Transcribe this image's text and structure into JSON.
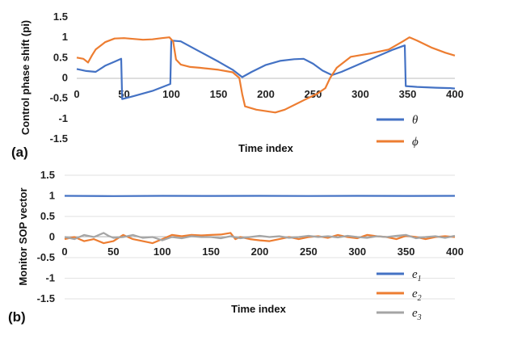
{
  "chart_data": [
    {
      "type": "line",
      "panel_label": "(a)",
      "xlabel": "Time index",
      "ylabel": "Control phase shift (pi)",
      "xlim": [
        0,
        400
      ],
      "ylim": [
        -1.5,
        1.5
      ],
      "x_ticks": [
        "0",
        "50",
        "100",
        "150",
        "200",
        "250",
        "300",
        "350",
        "400"
      ],
      "y_ticks": [
        "1.5",
        "1",
        "0.5",
        "0",
        "-0.5",
        "-1",
        "-1.5"
      ],
      "grid": false,
      "legend_position": "bottom-right",
      "series": [
        {
          "name": "θ",
          "color": "#4472C4",
          "points": [
            [
              0,
              0.22
            ],
            [
              10,
              0.17
            ],
            [
              20,
              0.15
            ],
            [
              30,
              0.3
            ],
            [
              40,
              0.4
            ],
            [
              47,
              0.47
            ],
            [
              48,
              -0.52
            ],
            [
              60,
              -0.45
            ],
            [
              80,
              -0.32
            ],
            [
              99,
              -0.15
            ],
            [
              100,
              0.92
            ],
            [
              110,
              0.9
            ],
            [
              130,
              0.65
            ],
            [
              150,
              0.4
            ],
            [
              165,
              0.2
            ],
            [
              175,
              0.02
            ],
            [
              185,
              0.15
            ],
            [
              200,
              0.32
            ],
            [
              215,
              0.42
            ],
            [
              230,
              0.46
            ],
            [
              240,
              0.47
            ],
            [
              250,
              0.35
            ],
            [
              260,
              0.18
            ],
            [
              270,
              0.07
            ],
            [
              280,
              0.15
            ],
            [
              300,
              0.35
            ],
            [
              320,
              0.55
            ],
            [
              335,
              0.7
            ],
            [
              347,
              0.8
            ],
            [
              348,
              -0.2
            ],
            [
              360,
              -0.22
            ],
            [
              380,
              -0.24
            ],
            [
              395,
              -0.25
            ],
            [
              400,
              -0.26
            ]
          ]
        },
        {
          "name": "ϕ",
          "color": "#ED7D31",
          "points": [
            [
              0,
              0.5
            ],
            [
              7,
              0.47
            ],
            [
              12,
              0.38
            ],
            [
              16,
              0.55
            ],
            [
              20,
              0.7
            ],
            [
              30,
              0.88
            ],
            [
              40,
              0.97
            ],
            [
              50,
              0.98
            ],
            [
              60,
              0.96
            ],
            [
              70,
              0.94
            ],
            [
              80,
              0.95
            ],
            [
              90,
              0.98
            ],
            [
              98,
              1.0
            ],
            [
              102,
              0.9
            ],
            [
              105,
              0.45
            ],
            [
              110,
              0.33
            ],
            [
              120,
              0.27
            ],
            [
              130,
              0.25
            ],
            [
              150,
              0.2
            ],
            [
              165,
              0.14
            ],
            [
              172,
              0.0
            ],
            [
              175,
              -0.4
            ],
            [
              178,
              -0.7
            ],
            [
              190,
              -0.78
            ],
            [
              210,
              -0.85
            ],
            [
              220,
              -0.78
            ],
            [
              240,
              -0.55
            ],
            [
              255,
              -0.38
            ],
            [
              263,
              -0.25
            ],
            [
              268,
              0.0
            ],
            [
              275,
              0.25
            ],
            [
              290,
              0.52
            ],
            [
              310,
              0.6
            ],
            [
              330,
              0.7
            ],
            [
              345,
              0.9
            ],
            [
              352,
              1.0
            ],
            [
              360,
              0.92
            ],
            [
              375,
              0.75
            ],
            [
              390,
              0.62
            ],
            [
              400,
              0.55
            ]
          ]
        }
      ]
    },
    {
      "type": "line",
      "panel_label": "(b)",
      "xlabel": "Time index",
      "ylabel": "Monitor SOP vector",
      "xlim": [
        0,
        400
      ],
      "ylim": [
        -1.5,
        1.5
      ],
      "x_ticks": [
        "0",
        "50",
        "100",
        "150",
        "200",
        "250",
        "300",
        "350",
        "400"
      ],
      "y_ticks": [
        "1.5",
        "1",
        "0.5",
        "0",
        "-0.5",
        "-1",
        "-1.5"
      ],
      "grid": true,
      "legend_position": "bottom-right",
      "series": [
        {
          "name": "e",
          "subscript": "1",
          "color": "#4472C4",
          "points": [
            [
              0,
              1.0
            ],
            [
              50,
              0.995
            ],
            [
              100,
              1.0
            ],
            [
              150,
              0.998
            ],
            [
              200,
              1.0
            ],
            [
              250,
              0.997
            ],
            [
              300,
              1.0
            ],
            [
              350,
              0.998
            ],
            [
              400,
              1.0
            ]
          ]
        },
        {
          "name": "e",
          "subscript": "2",
          "color": "#ED7D31",
          "points": [
            [
              0,
              -0.05
            ],
            [
              10,
              0.0
            ],
            [
              20,
              -0.1
            ],
            [
              30,
              -0.05
            ],
            [
              40,
              -0.15
            ],
            [
              50,
              -0.1
            ],
            [
              60,
              0.05
            ],
            [
              70,
              -0.05
            ],
            [
              80,
              -0.1
            ],
            [
              90,
              -0.15
            ],
            [
              100,
              -0.05
            ],
            [
              110,
              0.05
            ],
            [
              120,
              0.02
            ],
            [
              130,
              0.05
            ],
            [
              140,
              0.04
            ],
            [
              150,
              0.05
            ],
            [
              160,
              0.06
            ],
            [
              170,
              0.1
            ],
            [
              175,
              -0.05
            ],
            [
              180,
              0.0
            ],
            [
              190,
              -0.05
            ],
            [
              200,
              -0.08
            ],
            [
              210,
              -0.1
            ],
            [
              220,
              -0.05
            ],
            [
              230,
              0.0
            ],
            [
              240,
              -0.05
            ],
            [
              250,
              0.0
            ],
            [
              260,
              0.02
            ],
            [
              270,
              -0.02
            ],
            [
              280,
              0.05
            ],
            [
              290,
              0.0
            ],
            [
              300,
              -0.03
            ],
            [
              310,
              0.05
            ],
            [
              320,
              0.02
            ],
            [
              330,
              0.0
            ],
            [
              340,
              -0.05
            ],
            [
              350,
              0.03
            ],
            [
              360,
              0.0
            ],
            [
              370,
              -0.05
            ],
            [
              380,
              0.0
            ],
            [
              390,
              0.02
            ],
            [
              400,
              0.0
            ]
          ]
        },
        {
          "name": "e",
          "subscript": "3",
          "color": "#A5A5A5",
          "points": [
            [
              0,
              0.0
            ],
            [
              10,
              -0.05
            ],
            [
              20,
              0.05
            ],
            [
              30,
              0.0
            ],
            [
              40,
              0.1
            ],
            [
              45,
              0.03
            ],
            [
              50,
              -0.02
            ],
            [
              60,
              0.0
            ],
            [
              70,
              0.05
            ],
            [
              80,
              -0.02
            ],
            [
              90,
              0.0
            ],
            [
              100,
              -0.08
            ],
            [
              110,
              0.0
            ],
            [
              120,
              -0.03
            ],
            [
              130,
              0.02
            ],
            [
              140,
              0.0
            ],
            [
              150,
              0.0
            ],
            [
              160,
              -0.03
            ],
            [
              170,
              0.02
            ],
            [
              180,
              -0.03
            ],
            [
              190,
              0.0
            ],
            [
              200,
              0.03
            ],
            [
              210,
              0.0
            ],
            [
              220,
              0.02
            ],
            [
              230,
              -0.02
            ],
            [
              240,
              0.0
            ],
            [
              250,
              0.03
            ],
            [
              260,
              0.0
            ],
            [
              270,
              0.02
            ],
            [
              280,
              -0.01
            ],
            [
              290,
              0.03
            ],
            [
              300,
              0.0
            ],
            [
              310,
              -0.02
            ],
            [
              320,
              0.02
            ],
            [
              330,
              0.0
            ],
            [
              340,
              0.03
            ],
            [
              350,
              0.05
            ],
            [
              360,
              -0.03
            ],
            [
              370,
              0.0
            ],
            [
              380,
              0.02
            ],
            [
              390,
              -0.02
            ],
            [
              400,
              0.03
            ]
          ]
        }
      ]
    }
  ]
}
